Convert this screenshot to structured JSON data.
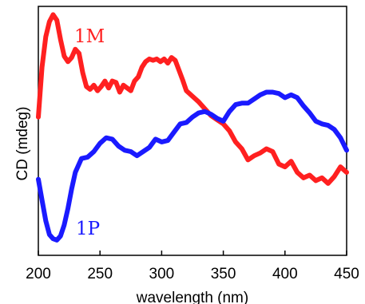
{
  "chart_data": {
    "type": "line",
    "xlabel": "wavelength (nm)",
    "ylabel": "CD (mdeg)",
    "xlim": [
      200,
      450
    ],
    "ylim": [
      -8,
      10
    ],
    "xticks": [
      "200",
      "250",
      "300",
      "350",
      "400",
      "450"
    ],
    "grid": false,
    "series": [
      {
        "name": "1M",
        "color": "#ff2020",
        "x": [
          200,
          203,
          206,
          209,
          212,
          215,
          218,
          221,
          224,
          227,
          230,
          233,
          236,
          239,
          242,
          245,
          248,
          251,
          254,
          257,
          260,
          263,
          266,
          269,
          272,
          275,
          278,
          281,
          284,
          287,
          290,
          293,
          296,
          299,
          302,
          305,
          308,
          311,
          314,
          317,
          320,
          325,
          330,
          335,
          340,
          345,
          350,
          355,
          360,
          365,
          370,
          375,
          380,
          385,
          390,
          395,
          400,
          405,
          410,
          415,
          420,
          425,
          430,
          435,
          440,
          445,
          450
        ],
        "values": [
          2.0,
          5.6,
          7.8,
          8.9,
          9.4,
          9.0,
          7.6,
          6.4,
          6.0,
          6.3,
          6.9,
          6.6,
          5.2,
          4.2,
          4.0,
          4.3,
          3.9,
          4.2,
          4.6,
          4.1,
          4.6,
          4.5,
          3.8,
          4.3,
          4.1,
          3.9,
          4.6,
          4.9,
          5.6,
          6.0,
          6.2,
          6.1,
          6.2,
          6.0,
          6.2,
          5.9,
          6.3,
          6.1,
          5.4,
          4.7,
          3.9,
          3.5,
          3.1,
          2.6,
          2.1,
          1.8,
          1.5,
          1.0,
          0.2,
          -0.3,
          -1.1,
          -0.8,
          -0.6,
          -0.3,
          -0.5,
          -1.4,
          -1.6,
          -1.2,
          -2.0,
          -2.4,
          -2.2,
          -2.6,
          -2.4,
          -2.8,
          -2.3,
          -1.6,
          -2.0
        ]
      },
      {
        "name": "1P",
        "color": "#1a1aff",
        "x": [
          200,
          203,
          206,
          209,
          212,
          215,
          218,
          221,
          224,
          227,
          230,
          235,
          240,
          245,
          250,
          255,
          260,
          265,
          270,
          275,
          280,
          285,
          290,
          295,
          300,
          305,
          310,
          315,
          320,
          325,
          330,
          335,
          340,
          345,
          350,
          355,
          360,
          365,
          370,
          375,
          380,
          385,
          390,
          395,
          400,
          405,
          410,
          415,
          420,
          425,
          430,
          435,
          440,
          445,
          450
        ],
        "values": [
          -2.5,
          -4.0,
          -5.5,
          -6.5,
          -6.8,
          -6.9,
          -6.6,
          -5.8,
          -4.6,
          -3.2,
          -2.0,
          -1.0,
          -0.9,
          -0.5,
          0.1,
          0.5,
          0.4,
          -0.1,
          -0.4,
          -0.5,
          -0.8,
          -0.5,
          -0.2,
          0.4,
          0.2,
          0.3,
          0.9,
          1.5,
          1.6,
          2.0,
          2.3,
          2.4,
          2.2,
          1.9,
          1.7,
          2.4,
          2.9,
          3.0,
          3.0,
          3.3,
          3.6,
          3.8,
          3.8,
          3.7,
          3.4,
          3.6,
          3.4,
          2.8,
          2.3,
          1.7,
          1.5,
          1.4,
          1.1,
          0.5,
          -0.4
        ]
      }
    ]
  }
}
